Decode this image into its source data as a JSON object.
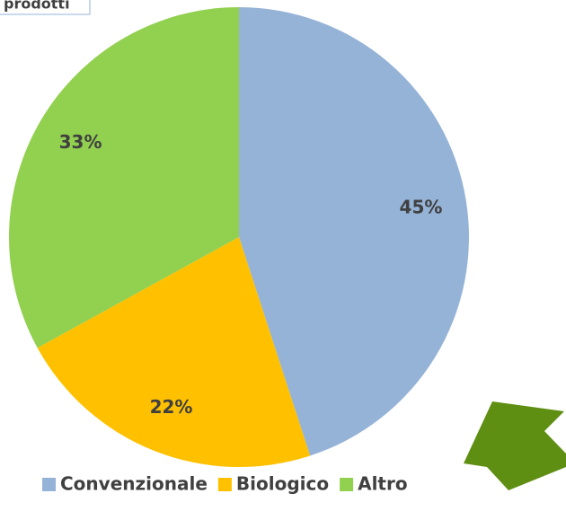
{
  "chart_data": {
    "type": "pie",
    "title": "prodotti",
    "categories": [
      "Convenzionale",
      "Biologico",
      "Altro"
    ],
    "values": [
      45,
      22,
      33
    ],
    "value_labels": [
      "45%",
      "22%",
      "33%"
    ],
    "colors": [
      "#95b3d7",
      "#ffc000",
      "#92d050"
    ],
    "legend": "bottom"
  }
}
